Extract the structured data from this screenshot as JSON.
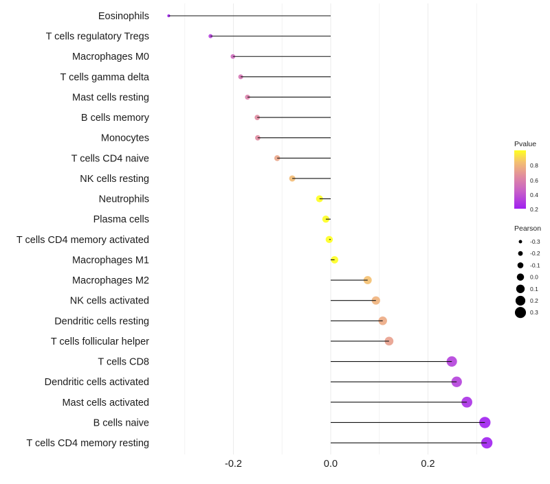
{
  "chart_data": {
    "type": "lollipop",
    "xlabel": "",
    "ylabel": "",
    "xlim": [
      -0.35,
      0.43
    ],
    "x_ticks": [
      -0.2,
      0.0,
      0.2
    ],
    "x_tick_labels": [
      "-0.2",
      "0.0",
      "0.2"
    ],
    "grid": true,
    "categories": [
      "Eosinophils",
      "T cells regulatory  Tregs",
      "Macrophages M0",
      "T cells gamma delta",
      "Mast cells resting",
      "B cells memory",
      "Monocytes",
      "T cells CD4 naive",
      "NK cells resting",
      "Neutrophils",
      "Plasma cells",
      "T cells CD4 memory activated",
      "Macrophages M1",
      "Macrophages M2",
      "NK cells activated",
      "Dendritic cells resting",
      "T cells follicular helper",
      "T cells CD8",
      "Dendritic cells activated",
      "Mast cells activated",
      "B cells naive",
      "T cells CD4 memory resting"
    ],
    "pearson": [
      -0.333,
      -0.247,
      -0.201,
      -0.185,
      -0.171,
      -0.151,
      -0.15,
      -0.11,
      -0.079,
      -0.023,
      -0.01,
      -0.003,
      0.008,
      0.076,
      0.093,
      0.107,
      0.12,
      0.249,
      0.259,
      0.28,
      0.317,
      0.321
    ],
    "pvalue": [
      0.2,
      0.3,
      0.45,
      0.5,
      0.55,
      0.6,
      0.6,
      0.7,
      0.78,
      0.95,
      0.97,
      0.99,
      0.98,
      0.8,
      0.75,
      0.72,
      0.68,
      0.3,
      0.3,
      0.25,
      0.2,
      0.2
    ],
    "legend": {
      "placement": "right",
      "color_title": "Pvalue",
      "color_ticks": [
        "0.8",
        "0.6",
        "0.4",
        "0.2"
      ],
      "color_low": "#a020f0",
      "color_high": "#ffff00",
      "size_title": "Pearson",
      "size_ticks": [
        "-0.3",
        "-0.2",
        "-0.1",
        "0.0",
        "0.1",
        "0.2",
        "0.3"
      ]
    }
  }
}
